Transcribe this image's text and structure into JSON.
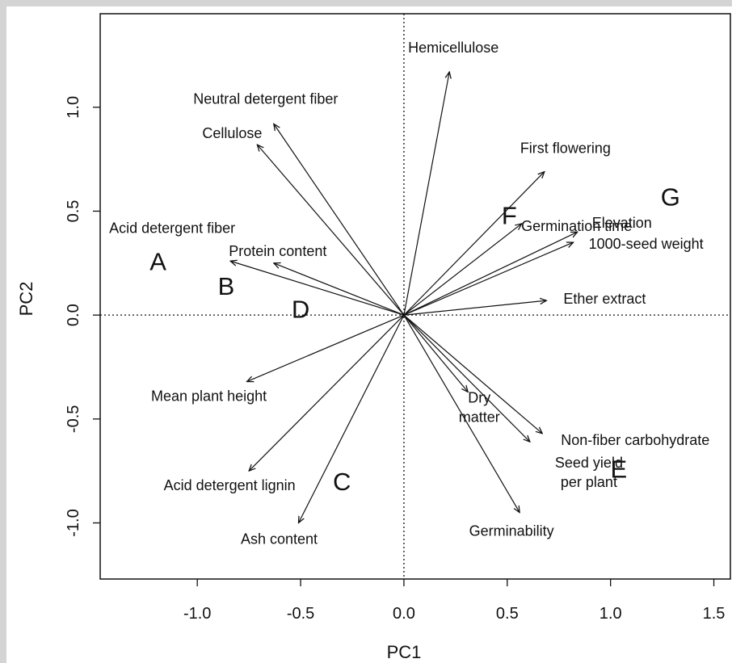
{
  "chart_data": {
    "type": "scatter",
    "subtype": "pca-biplot",
    "xlabel": "PC1",
    "ylabel": "PC2",
    "xlim": [
      -1.47,
      1.58
    ],
    "ylim": [
      -1.27,
      1.45
    ],
    "x_ticks": [
      -1.0,
      -0.5,
      0.0,
      0.5,
      1.0,
      1.5
    ],
    "x_tick_labels": [
      "-1.0",
      "-0.5",
      "0.0",
      "0.5",
      "1.0",
      "1.5"
    ],
    "y_ticks": [
      -1.0,
      -0.5,
      0.0,
      0.5,
      1.0
    ],
    "y_tick_labels": [
      "-1.0",
      "-0.5",
      "0.0",
      "0.5",
      "1.0"
    ],
    "grid": false,
    "reference_lines": "dotted lines at x = 0 and y = 0",
    "vectors": [
      {
        "label": "Hemicellulose",
        "x": 0.22,
        "y": 1.17
      },
      {
        "label": "Neutral detergent fiber",
        "x": -0.63,
        "y": 0.92
      },
      {
        "label": "Cellulose",
        "x": -0.71,
        "y": 0.82
      },
      {
        "label": "Acid detergent fiber",
        "x": -0.84,
        "y": 0.26
      },
      {
        "label": "Protein content",
        "x": -0.63,
        "y": 0.25
      },
      {
        "label": "First flowering",
        "x": 0.68,
        "y": 0.69
      },
      {
        "label": "Germination time",
        "x": 0.57,
        "y": 0.44
      },
      {
        "label": "Elevation",
        "x": 0.84,
        "y": 0.4
      },
      {
        "label": "1000-seed weight",
        "x": 0.82,
        "y": 0.35
      },
      {
        "label": "Ether extract",
        "x": 0.69,
        "y": 0.07
      },
      {
        "label": "Mean plant height",
        "x": -0.76,
        "y": -0.32
      },
      {
        "label": "Acid detergent lignin",
        "x": -0.75,
        "y": -0.75
      },
      {
        "label": "Ash content",
        "x": -0.51,
        "y": -1.0
      },
      {
        "label": "Dry matter",
        "x": 0.31,
        "y": -0.37
      },
      {
        "label": "Non-fiber carbohydrate",
        "x": 0.67,
        "y": -0.57
      },
      {
        "label": "Seed yield per plant",
        "x": 0.61,
        "y": -0.61
      },
      {
        "label": "Germinability",
        "x": 0.56,
        "y": -0.95
      }
    ],
    "groups": [
      {
        "label": "A",
        "x": -1.19,
        "y": 0.26
      },
      {
        "label": "B",
        "x": -0.86,
        "y": 0.14
      },
      {
        "label": "C",
        "x": -0.3,
        "y": -0.8
      },
      {
        "label": "D",
        "x": -0.5,
        "y": 0.03
      },
      {
        "label": "E",
        "x": 1.04,
        "y": -0.74
      },
      {
        "label": "F",
        "x": 0.51,
        "y": 0.48
      },
      {
        "label": "G",
        "x": 1.29,
        "y": 0.57
      }
    ]
  }
}
